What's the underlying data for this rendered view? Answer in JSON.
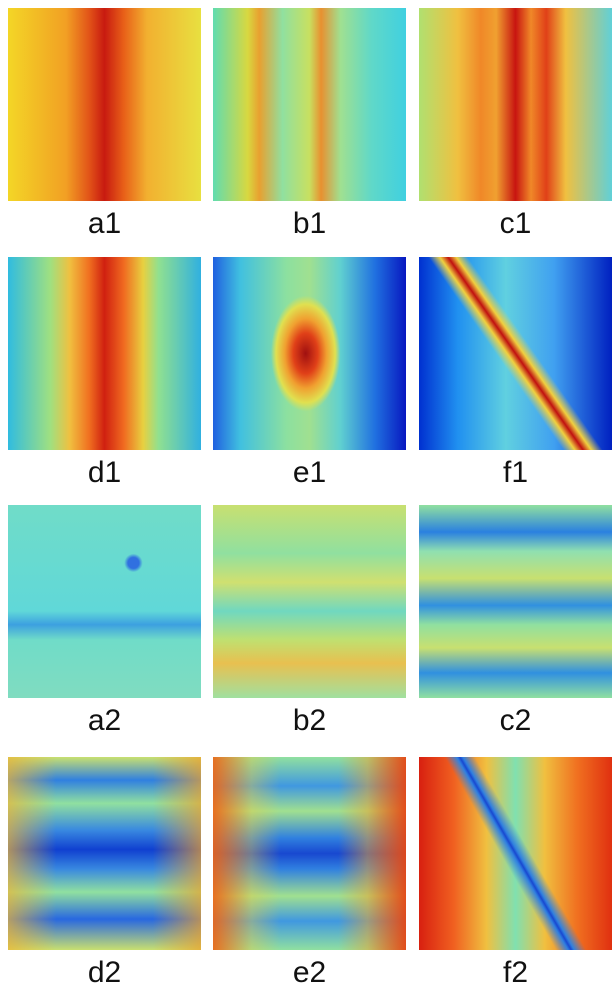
{
  "panels": [
    {
      "label": "a1"
    },
    {
      "label": "b1"
    },
    {
      "label": "c1"
    },
    {
      "label": "d1"
    },
    {
      "label": "e1"
    },
    {
      "label": "f1"
    },
    {
      "label": "a2"
    },
    {
      "label": "b2"
    },
    {
      "label": "c2"
    },
    {
      "label": "d2"
    },
    {
      "label": "e2"
    },
    {
      "label": "f2"
    }
  ]
}
